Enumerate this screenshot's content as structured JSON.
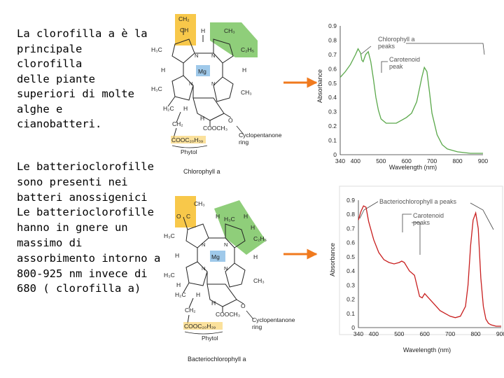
{
  "intro_text": "La clorofilla a è la\nprincipale clorofilla\ndelle piante\nsuperiori di molte\nalghe e\ncianobatteri.",
  "desc_text": "Le batterioclorofille\nsono presenti nei\nbatteri anossigenici\nLe batterioclorofille\nhanno in gnere un\nmassimo di\nassorbimento intorno a\n800-925 nm invece di\n680 ( clorofilla a)",
  "colors": {
    "yellow": "#f8c84a",
    "green": "#8fce7a",
    "blue": "#9fc9ea",
    "orange": "#f07a1e",
    "chl_curve": "#5aa84a",
    "bchl_curve": "#c81e1e",
    "frame": "#dcdcdc"
  },
  "molecule_top": {
    "caption": "Chlorophyll a",
    "metal": "Mg",
    "vinyl_labels": [
      "CH₂",
      "CH"
    ],
    "substituents": [
      "H",
      "CH₃",
      "H₃C",
      "C₂H₅",
      "H",
      "H",
      "H₃C",
      "CH₃",
      "H₂C",
      "H",
      "H",
      "CH₂",
      "COOCH₃",
      "O",
      "H",
      "COOC₂₀H₃₉"
    ],
    "ring_n": [
      "N",
      "N",
      "N",
      "N"
    ],
    "annotation_ring": "Cyclopentanone\nring",
    "phytol": "Phytol"
  },
  "molecule_bottom": {
    "caption": "Bacteriochlorophyll a",
    "metal": "Mg",
    "acetyl_labels": [
      "CH₃",
      "O",
      "C"
    ],
    "substituents": [
      "H",
      "H₃C",
      "H",
      "H",
      "C₂H₅",
      "H₃C",
      "H",
      "H",
      "H₃C",
      "CH₃",
      "H",
      "H₂C",
      "H",
      "H",
      "CH₂",
      "COOCH₃",
      "O",
      "H",
      "COOC₂₀H₃₉"
    ],
    "ring_n": [
      "N",
      "N",
      "N",
      "N"
    ],
    "annotation_ring": "Cyclopentanone\nring",
    "phytol": "Phytol"
  },
  "chart_data": [
    {
      "type": "line",
      "title": "",
      "xlabel": "Wavelength (nm)",
      "ylabel": "Absorbance",
      "xlim": [
        340,
        900
      ],
      "ylim": [
        0,
        0.9
      ],
      "xticks": [
        340,
        400,
        500,
        600,
        700,
        800,
        900
      ],
      "yticks": [
        0,
        0.1,
        0.2,
        0.3,
        0.4,
        0.5,
        0.6,
        0.7,
        0.8,
        0.9
      ],
      "annotations": [
        "Chlorophyll a\npeaks",
        "Carotenoid\npeak"
      ],
      "series": [
        {
          "x": [
            340,
            360,
            380,
            400,
            410,
            420,
            425,
            430,
            440,
            450,
            460,
            470,
            480,
            490,
            500,
            520,
            540,
            560,
            580,
            600,
            620,
            640,
            660,
            670,
            680,
            690,
            700,
            720,
            740,
            760,
            800,
            850,
            900
          ],
          "y": [
            0.54,
            0.58,
            0.63,
            0.7,
            0.74,
            0.71,
            0.66,
            0.65,
            0.7,
            0.72,
            0.65,
            0.53,
            0.4,
            0.31,
            0.25,
            0.22,
            0.22,
            0.22,
            0.24,
            0.26,
            0.29,
            0.37,
            0.54,
            0.61,
            0.58,
            0.44,
            0.29,
            0.14,
            0.07,
            0.04,
            0.02,
            0.01,
            0.01
          ]
        }
      ]
    },
    {
      "type": "line",
      "title": "",
      "xlabel": "Wavelength (nm)",
      "ylabel": "Absorbance",
      "xlim": [
        340,
        900
      ],
      "ylim": [
        0,
        0.9
      ],
      "xticks": [
        340,
        400,
        500,
        600,
        700,
        800,
        900
      ],
      "yticks": [
        0,
        0.1,
        0.2,
        0.3,
        0.4,
        0.5,
        0.6,
        0.7,
        0.8,
        0.9
      ],
      "annotations": [
        "Bacteriochlorophyll a peaks",
        "Carotenoid\npeaks"
      ],
      "series": [
        {
          "x": [
            340,
            350,
            360,
            370,
            380,
            400,
            420,
            440,
            460,
            480,
            500,
            510,
            520,
            540,
            560,
            580,
            590,
            600,
            620,
            640,
            660,
            680,
            700,
            720,
            740,
            760,
            770,
            780,
            790,
            800,
            810,
            820,
            830,
            840,
            850,
            860,
            880,
            900
          ],
          "y": [
            0.76,
            0.82,
            0.86,
            0.85,
            0.75,
            0.62,
            0.53,
            0.48,
            0.46,
            0.45,
            0.46,
            0.47,
            0.46,
            0.4,
            0.37,
            0.22,
            0.21,
            0.24,
            0.2,
            0.16,
            0.12,
            0.1,
            0.08,
            0.07,
            0.08,
            0.15,
            0.3,
            0.58,
            0.76,
            0.81,
            0.7,
            0.35,
            0.15,
            0.06,
            0.03,
            0.02,
            0.01,
            0.01
          ]
        }
      ]
    }
  ]
}
